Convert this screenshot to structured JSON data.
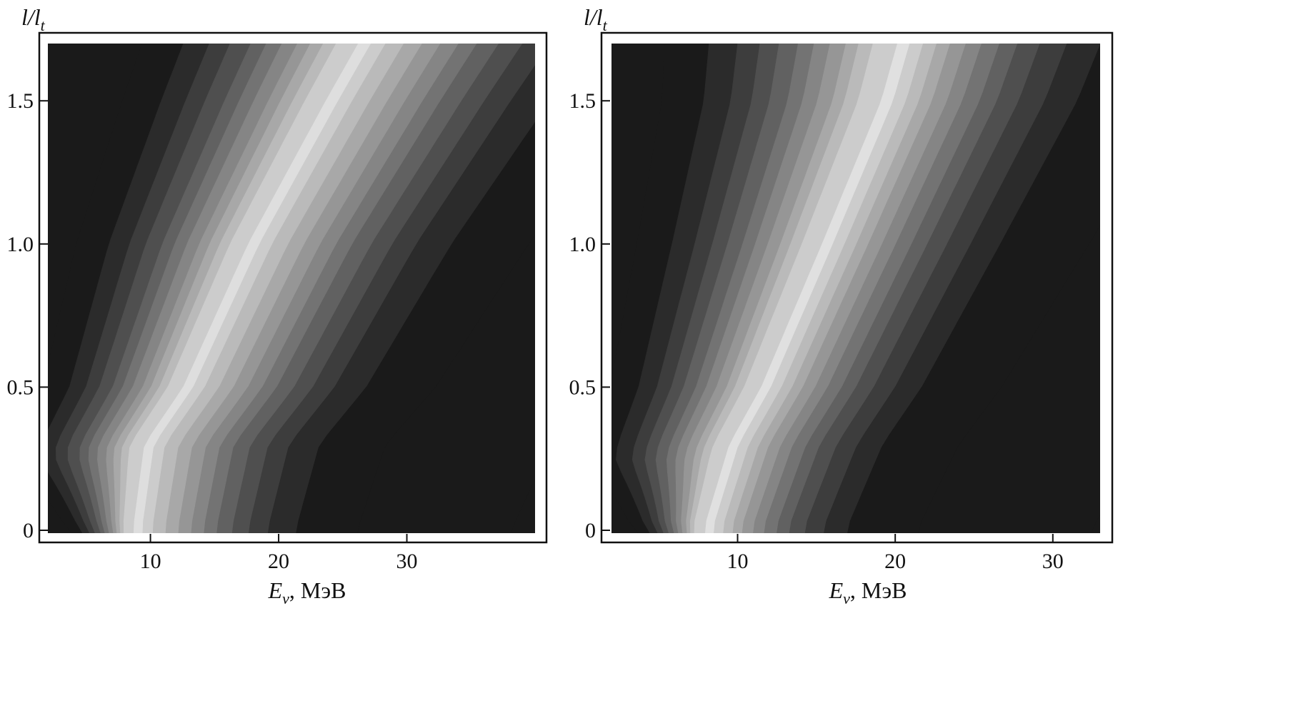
{
  "chart_data": [
    {
      "type": "heatmap",
      "title": "",
      "xlabel": "E_ν, МэВ",
      "ylabel": "l/l_t",
      "xlim": [
        2,
        40
      ],
      "ylim": [
        -0.01,
        1.7
      ],
      "xticks": [
        "10",
        "20",
        "30"
      ],
      "yticks": [
        "0",
        "0.5",
        "1.0",
        "1.5"
      ],
      "ridge_E": [
        [
          0.02,
          8.2
        ],
        [
          0.3,
          9.0
        ],
        [
          0.5,
          12.0
        ],
        [
          1.0,
          17.0
        ],
        [
          1.5,
          23.0
        ],
        [
          1.7,
          25.5
        ]
      ],
      "band_offsets": [
        -8,
        -6.4,
        -5.4,
        -4.6,
        -3.8,
        -3.2,
        -2.6,
        -2.0,
        -1.5,
        -1.0,
        -0.5,
        0.5,
        1.2,
        2.0,
        3.0,
        4.0,
        5.0,
        6.0,
        7.0,
        8.2,
        9.5,
        11.0,
        13.2,
        18.0,
        30.0
      ],
      "band_levels": [
        0.1,
        0.17,
        0.24,
        0.31,
        0.38,
        0.45,
        0.52,
        0.59,
        0.66,
        0.73,
        0.8,
        0.87,
        0.8,
        0.73,
        0.66,
        0.59,
        0.52,
        0.45,
        0.38,
        0.31,
        0.24,
        0.17,
        0.1,
        0.1
      ],
      "grid": false,
      "colormap": "gray"
    },
    {
      "type": "heatmap",
      "title": "",
      "xlabel": "E_ν, МэВ",
      "ylabel": "l/l_t",
      "xlim": [
        2,
        33
      ],
      "ylim": [
        -0.01,
        1.7
      ],
      "xticks": [
        "10",
        "20",
        "30"
      ],
      "yticks": [
        "0",
        "0.5",
        "1.0",
        "1.5"
      ],
      "ridge_E": [
        [
          0.02,
          7.5
        ],
        [
          0.3,
          9.0
        ],
        [
          0.5,
          11.0
        ],
        [
          1.0,
          14.8
        ],
        [
          1.5,
          18.5
        ],
        [
          1.7,
          19.5
        ]
      ],
      "band_offsets": [
        -7,
        -5.6,
        -4.7,
        -4.0,
        -3.4,
        -2.8,
        -2.3,
        -1.8,
        -1.3,
        -0.9,
        -0.45,
        0.45,
        1.0,
        1.6,
        2.2,
        2.8,
        3.5,
        4.2,
        5.0,
        5.8,
        6.8,
        8.0,
        9.5,
        14.0,
        25.0
      ],
      "band_levels": [
        0.1,
        0.17,
        0.24,
        0.31,
        0.38,
        0.45,
        0.52,
        0.59,
        0.66,
        0.73,
        0.8,
        0.88,
        0.8,
        0.73,
        0.66,
        0.59,
        0.52,
        0.45,
        0.38,
        0.31,
        0.24,
        0.17,
        0.1,
        0.1
      ],
      "grid": false,
      "colormap": "gray"
    }
  ],
  "axis_text": {
    "y_main": "l/l",
    "y_sub": "t",
    "x_main": "E",
    "x_sub": "ν",
    "x_unit": ", МэВ"
  }
}
